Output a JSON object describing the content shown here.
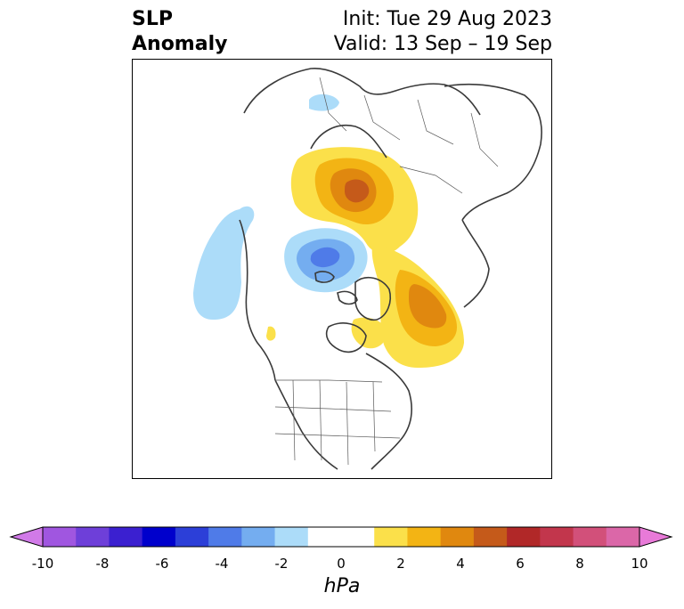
{
  "title": {
    "left_line1": "SLP",
    "left_line2": "Anomaly",
    "right_line1": "Init: Tue 29 Aug 2023",
    "right_line2": "Valid: 13 Sep – 19 Sep"
  },
  "map": {
    "projection": "polar stereographic (North Pole)",
    "field": "sea level pressure anomaly"
  },
  "colorbar": {
    "unit": "hPa",
    "extend": "both",
    "ticks": [
      "-10",
      "-8",
      "-6",
      "-4",
      "-2",
      "0",
      "2",
      "4",
      "6",
      "8",
      "10"
    ],
    "colors": [
      "#d17ae8",
      "#a056e0",
      "#6e3fd9",
      "#3b20d0",
      "#0000cc",
      "#2c3fd8",
      "#4f7be8",
      "#74adf0",
      "#acdcf9",
      "#ffffff",
      "#ffffff",
      "#fbe04a",
      "#f3b414",
      "#e0880f",
      "#c55a1a",
      "#b12828",
      "#c2364c",
      "#d2507a",
      "#db67a8",
      "#e87ad8"
    ]
  }
}
